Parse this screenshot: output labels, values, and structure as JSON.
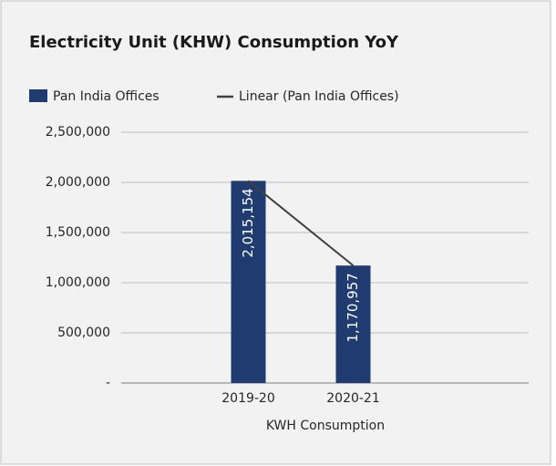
{
  "chart_data": {
    "type": "bar",
    "title": "Electricity Unit (KHW) Consumption YoY",
    "x_label": "KWH Consumption",
    "categories": [
      "2019-20",
      "2020-21"
    ],
    "series": [
      {
        "name": "Pan India Offices",
        "color": "#1f3b70",
        "values": [
          2015154,
          1170957
        ],
        "value_labels": [
          "2,015,154",
          "1,170,957"
        ]
      }
    ],
    "trendline": {
      "name": "Linear (Pan India Offices)",
      "color": "#404040"
    },
    "ylim": [
      0,
      2500000
    ],
    "yticks": [
      {
        "value": 0,
        "label": "-"
      },
      {
        "value": 500000,
        "label": "500,000"
      },
      {
        "value": 1000000,
        "label": "1,000,000"
      },
      {
        "value": 1500000,
        "label": "1,500,000"
      },
      {
        "value": 2000000,
        "label": "2,000,000"
      },
      {
        "value": 2500000,
        "label": "2,500,000"
      }
    ],
    "grid": true
  }
}
